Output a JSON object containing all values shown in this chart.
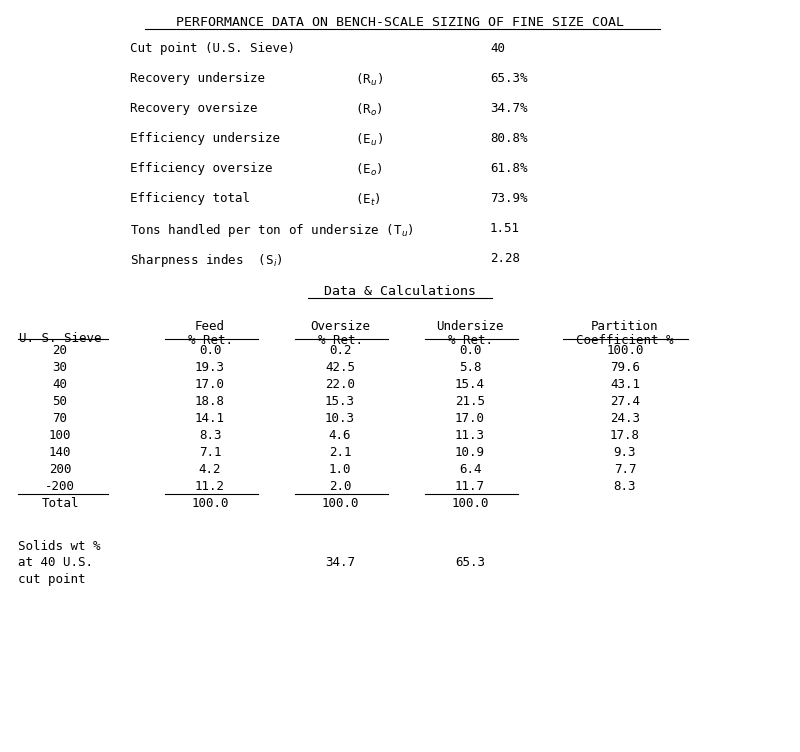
{
  "title": "PERFORMANCE DATA ON BENCH-SCALE SIZING OF FINE SIZE COAL",
  "bg_color": "#ffffff",
  "performance": [
    {
      "label": "Cut point (U.S. Sieve)",
      "symbol": "",
      "value": "40"
    },
    {
      "label": "Recovery undersize",
      "symbol": "(R$_u$)",
      "value": "65.3%"
    },
    {
      "label": "Recovery oversize",
      "symbol": "(R$_o$)",
      "value": "34.7%"
    },
    {
      "label": "Efficiency undersize",
      "symbol": "(E$_u$)",
      "value": "80.8%"
    },
    {
      "label": "Efficiency oversize",
      "symbol": "(E$_o$)",
      "value": "61.8%"
    },
    {
      "label": "Efficiency total",
      "symbol": "(E$_t$)",
      "value": "73.9%"
    },
    {
      "label": "Tons handled per ton of undersize (T$_u$)",
      "symbol": "",
      "value": "1.51"
    },
    {
      "label": "Sharpness indes  (S$_i$)",
      "symbol": "",
      "value": "2.28"
    }
  ],
  "section2_title": "Data & Calculations",
  "col_headers": [
    "U. S. Sieve",
    "Feed\n% Ret.",
    "Oversize\n% Ret.",
    "Undersize\n% Ret.",
    "Partition\nCoefficient %"
  ],
  "table_data": [
    [
      "20",
      "0.0",
      "0.2",
      "0.0",
      "100.0"
    ],
    [
      "30",
      "19.3",
      "42.5",
      "5.8",
      "79.6"
    ],
    [
      "40",
      "17.0",
      "22.0",
      "15.4",
      "43.1"
    ],
    [
      "50",
      "18.8",
      "15.3",
      "21.5",
      "27.4"
    ],
    [
      "70",
      "14.1",
      "10.3",
      "17.0",
      "24.3"
    ],
    [
      "100",
      "8.3",
      "4.6",
      "11.3",
      "17.8"
    ],
    [
      "140",
      "7.1",
      "2.1",
      "10.9",
      "9.3"
    ],
    [
      "200",
      "4.2",
      "1.0",
      "6.4",
      "7.7"
    ],
    [
      "-200",
      "11.2",
      "2.0",
      "11.7",
      "8.3"
    ]
  ],
  "total_row": [
    "Total",
    "100.0",
    "100.0",
    "100.0",
    ""
  ],
  "solids_label_lines": [
    "Solids wt %",
    "at 40 U.S.",
    "cut point"
  ],
  "solids_oversize": "34.7",
  "solids_undersize": "65.3",
  "font_size": 9.0,
  "title_font_size": 9.5
}
